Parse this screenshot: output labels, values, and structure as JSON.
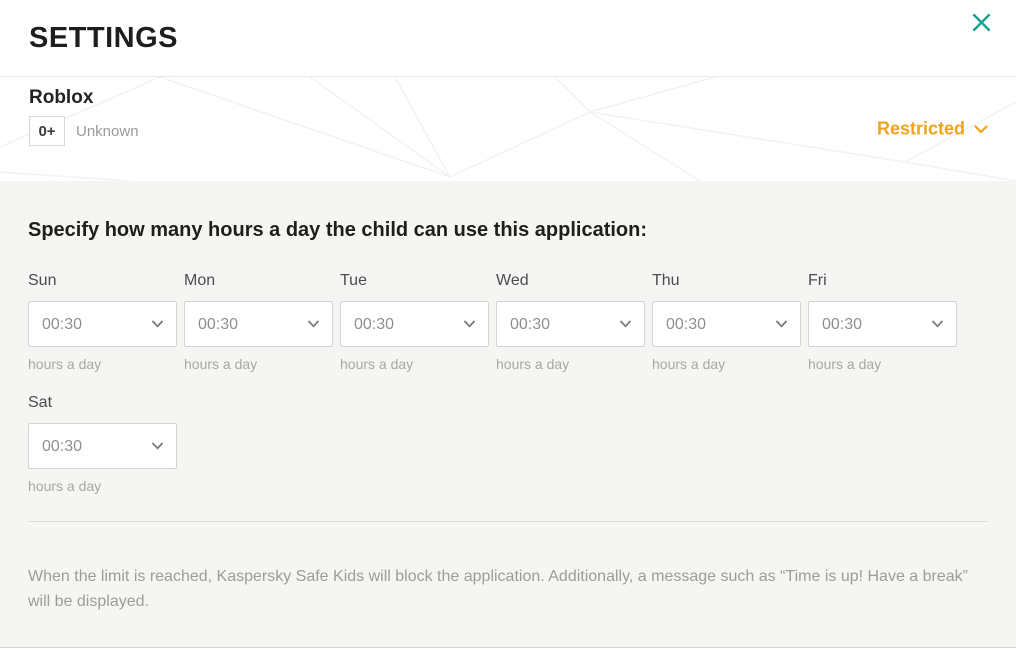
{
  "header": {
    "title": "SETTINGS"
  },
  "app": {
    "name": "Roblox",
    "age_badge": "0+",
    "category": "Unknown",
    "restriction_label": "Restricted"
  },
  "usage": {
    "heading": "Specify how many hours a day the child can use this application:",
    "unit_label": "hours a day",
    "days": [
      {
        "label": "Sun",
        "value": "00:30"
      },
      {
        "label": "Mon",
        "value": "00:30"
      },
      {
        "label": "Tue",
        "value": "00:30"
      },
      {
        "label": "Wed",
        "value": "00:30"
      },
      {
        "label": "Thu",
        "value": "00:30"
      },
      {
        "label": "Fri",
        "value": "00:30"
      },
      {
        "label": "Sat",
        "value": "00:30"
      }
    ]
  },
  "footer": {
    "note": "When the limit is reached, Kaspersky Safe Kids will block the application. Additionally, a message such as “Time is up! Have a break” will be displayed."
  },
  "colors": {
    "accent_teal": "#17a392",
    "restricted_orange": "#efa31e"
  }
}
